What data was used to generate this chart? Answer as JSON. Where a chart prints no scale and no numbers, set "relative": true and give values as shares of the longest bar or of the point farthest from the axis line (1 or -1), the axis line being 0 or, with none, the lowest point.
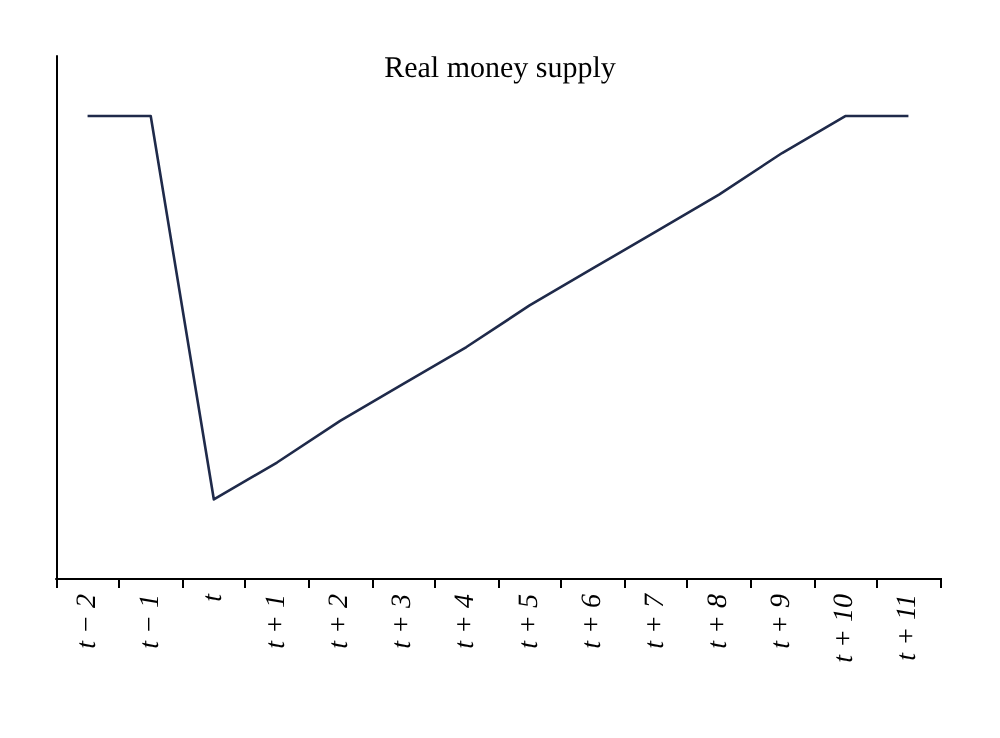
{
  "chart_data": {
    "type": "line",
    "title": "Real money supply",
    "relative": true,
    "categories": [
      "t − 2",
      "t − 1",
      "t",
      "t + 1",
      "t + 2",
      "t + 3",
      "t + 4",
      "t + 5",
      "t + 6",
      "t + 7",
      "t + 8",
      "t + 9",
      "t + 10",
      "t + 11"
    ],
    "series": [
      {
        "color": "#1f2a4a",
        "values": [
          1,
          1,
          0.17,
          0.25,
          0.34,
          0.42,
          0.5,
          0.59,
          0.67,
          0.75,
          0.83,
          0.92,
          1,
          1
        ]
      }
    ],
    "marker": "none",
    "line_style": "solid",
    "grid": false
  }
}
